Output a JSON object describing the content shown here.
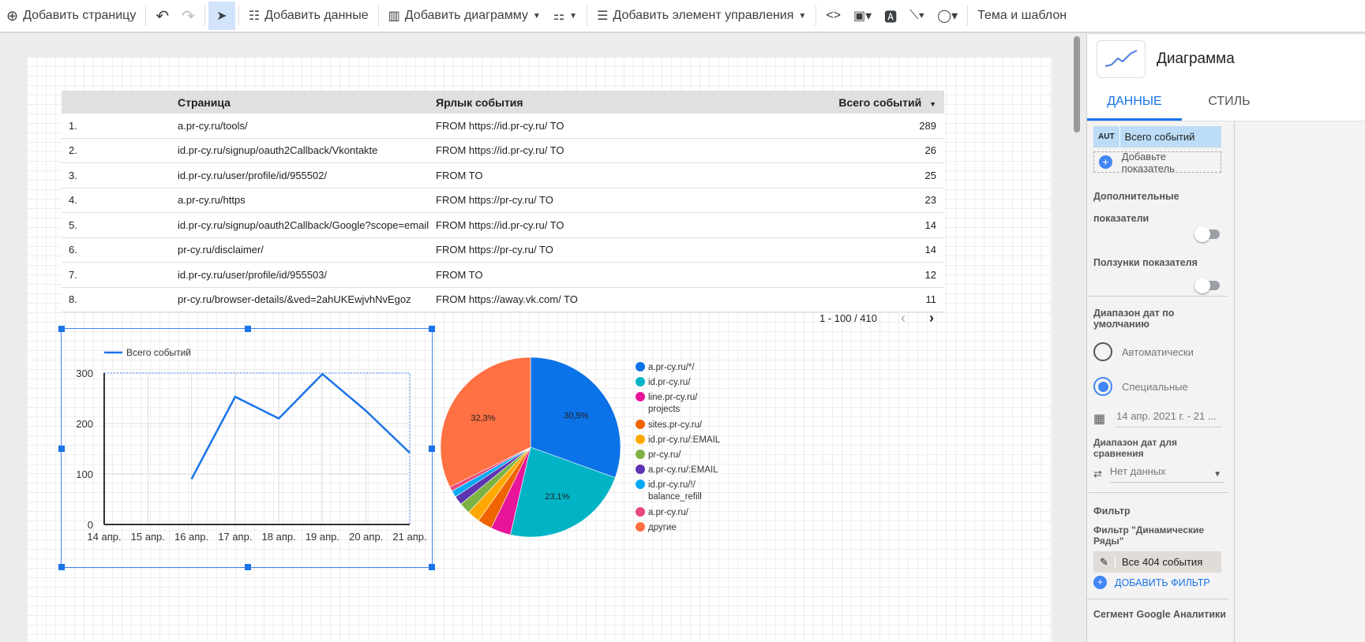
{
  "toolbar": {
    "add_page": "Добавить страницу",
    "add_data": "Добавить данные",
    "add_chart": "Добавить диаграмму",
    "add_control": "Добавить элемент управления",
    "theme": "Тема и шаблон"
  },
  "table": {
    "headers": [
      "",
      "Страница",
      "Ярлык события",
      "Всего событий"
    ],
    "rows": [
      [
        "1.",
        "a.pr-cy.ru/tools/",
        "FROM https://id.pr-cy.ru/ TO",
        "289"
      ],
      [
        "2.",
        "id.pr-cy.ru/signup/oauth2Callback/Vkontakte",
        "FROM https://id.pr-cy.ru/ TO",
        "26"
      ],
      [
        "3.",
        "id.pr-cy.ru/user/profile/id/955502/",
        "FROM TO",
        "25"
      ],
      [
        "4.",
        "a.pr-cy.ru/https",
        "FROM https://pr-cy.ru/ TO",
        "23"
      ],
      [
        "5.",
        "id.pr-cy.ru/signup/oauth2Callback/Google?scope=email",
        "FROM https://id.pr-cy.ru/ TO",
        "14"
      ],
      [
        "6.",
        "pr-cy.ru/disclaimer/",
        "FROM https://pr-cy.ru/ TO",
        "14"
      ],
      [
        "7.",
        "id.pr-cy.ru/user/profile/id/955503/",
        "FROM TO",
        "12"
      ],
      [
        "8.",
        "pr-cy.ru/browser-details/&ved=2ahUKEwjvhNvEgoz",
        "FROM https://away.vk.com/ TO",
        "11"
      ]
    ],
    "pagination": "1 - 100 / 410"
  },
  "chart_data": [
    {
      "type": "line",
      "legend": "Всего событий",
      "legend_position": "top-left",
      "categories": [
        "14 апр.",
        "15 апр.",
        "16 апр.",
        "17 апр.",
        "18 апр.",
        "19 апр.",
        "20 апр.",
        "21 апр."
      ],
      "series": [
        {
          "name": "Всего событий",
          "values": [
            null,
            null,
            90,
            253,
            210,
            298,
            225,
            142
          ]
        }
      ],
      "ylim": [
        0,
        300
      ],
      "yticks": [
        "0",
        "100",
        "200",
        "300"
      ],
      "grid": true,
      "color": "#1a73e8"
    },
    {
      "type": "pie",
      "legend_position": "right",
      "labels": [
        "a.pr-cy.ru/*/",
        "id.pr-cy.ru/",
        "line.pr-cy.ru/ projects",
        "sites.pr-cy.ru/",
        "id.pr-cy.ru/:EMAIL",
        "pr-cy.ru/",
        "a.pr-cy.ru/:EMAIL",
        "id.pr-cy.ru/!/ balance_refill",
        "a.pr-cy.ru/",
        "другие"
      ],
      "values": [
        30.5,
        23.1,
        3.6,
        2.6,
        2.3,
        2.0,
        1.6,
        1.2,
        0.8,
        32.3
      ],
      "data_labels": [
        "30,5%",
        "23,1%",
        "",
        "",
        "",
        "",
        "",
        "",
        "",
        "32,3%"
      ],
      "colors": [
        "#0b72e7",
        "#00b4c6",
        "#e8149a",
        "#f06400",
        "#ffa900",
        "#7cb342",
        "#5e35b1",
        "#03a9f4",
        "#e84a7c",
        "#ff7043"
      ]
    }
  ],
  "panel": {
    "title": "Диаграмма",
    "tabs": [
      "ДАННЫЕ",
      "СТИЛЬ"
    ],
    "metric_type": "AUT",
    "metric": "Всего событий",
    "add_metric": "Добавьте показатель",
    "extra_metrics": "Дополнительные показатели",
    "metric_sliders": "Ползунки показателя",
    "default_range": "Диапазон дат по умолчанию",
    "auto": "Автоматически",
    "custom": "Специальные",
    "date_range": "14 апр. 2021 г. - 21 ...",
    "compare": "Диапазон дат для сравнения",
    "compare_value": "Нет данных",
    "filter": "Фильтр",
    "filter_label": "Фильтр \"Динамические Ряды\"",
    "filter_value": "Все 404 события",
    "add_filter": "ДОБАВИТЬ ФИЛЬТР",
    "segment": "Сегмент Google Аналитики"
  }
}
